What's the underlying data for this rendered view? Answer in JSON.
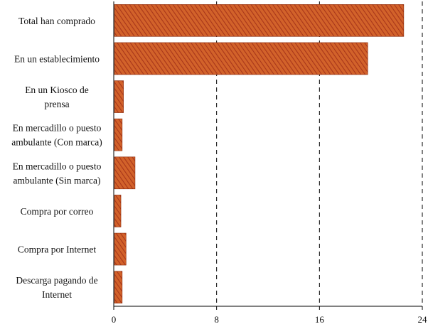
{
  "chart_data": {
    "type": "bar",
    "orientation": "horizontal",
    "categories": [
      "Total han comprado",
      "En un establecimiento",
      "En un Kiosco de prensa",
      "En mercadillo o puesto ambulante (Con marca)",
      "En mercadillo o puesto ambulante (Sin marca)",
      "Compra por correo",
      "Compra por Internet",
      "Descarga pagando de Internet"
    ],
    "category_lines": [
      [
        "Total han comprado"
      ],
      [
        "En un establecimiento"
      ],
      [
        "En un Kiosco de",
        "prensa"
      ],
      [
        "En mercadillo o puesto",
        "ambulante (Con marca)"
      ],
      [
        "En mercadillo o puesto",
        "ambulante (Sin marca)"
      ],
      [
        "Compra por correo"
      ],
      [
        "Compra por Internet"
      ],
      [
        "Descarga pagando de",
        "Internet"
      ]
    ],
    "values": [
      22.5,
      19.7,
      0.7,
      0.6,
      1.6,
      0.5,
      0.9,
      0.6
    ],
    "xlim": [
      0,
      24
    ],
    "xticks": [
      "0",
      "8",
      "16",
      "24"
    ],
    "grid": "vertical dashed",
    "colors": {
      "bar_dark": "#b8401a",
      "bar_light": "#e07a3a",
      "bar_shadow": "#8a2a0c",
      "grid": "#000000",
      "axis": "#000000"
    }
  }
}
